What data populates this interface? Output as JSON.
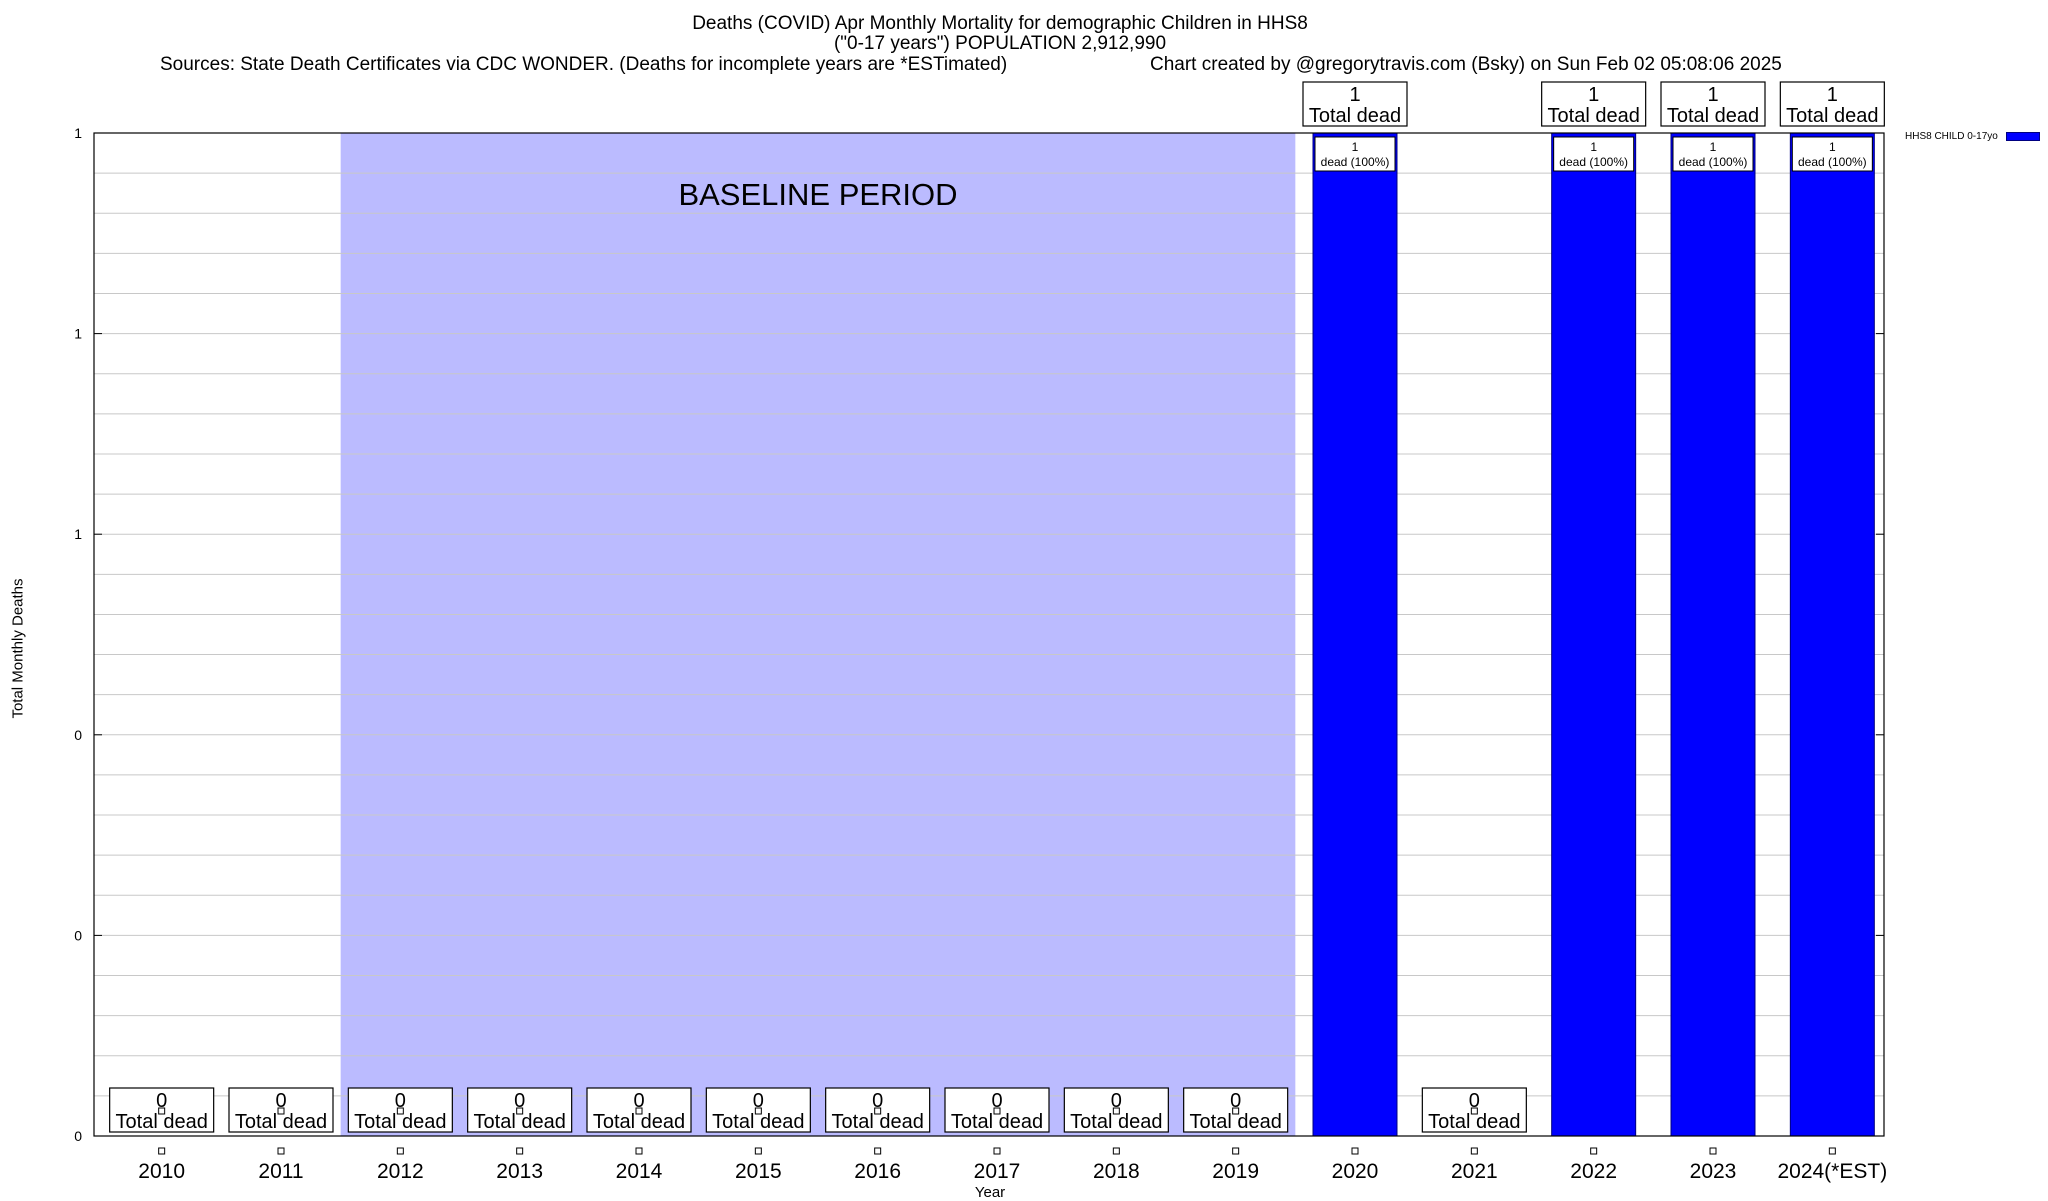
{
  "chart_data": {
    "type": "bar",
    "title": "Deaths (COVID) Apr Monthly Mortality for demographic Children in HHS8",
    "subtitle": "(\"0-17 years\") POPULATION 2,912,990",
    "sources_note": "Sources: State Death Certificates via CDC WONDER. (Deaths for incomplete years are *ESTimated)",
    "credit": "Chart created by @gregorytravis.com (Bsky) on Sun Feb 02 05:08:06 2025",
    "xlabel": "Year",
    "ylabel": "Total Monthly Deaths",
    "ylim": [
      0,
      1
    ],
    "ytick_labels": [
      "0",
      "0",
      "0",
      "1",
      "1",
      "1"
    ],
    "categories": [
      "2010",
      "2011",
      "2012",
      "2013",
      "2014",
      "2015",
      "2016",
      "2017",
      "2018",
      "2019",
      "2020",
      "2021",
      "2022",
      "2023",
      "2024(*EST)"
    ],
    "series": [
      {
        "name": "HHS8 CHILD 0-17yo",
        "values": [
          0,
          0,
          0,
          0,
          0,
          0,
          0,
          0,
          0,
          0,
          1,
          0,
          1,
          1,
          1
        ]
      }
    ],
    "total_label_suffix": "Total dead",
    "bar_label_suffix": "dead (100%)",
    "baseline": {
      "label": "BASELINE PERIOD",
      "start": "2012",
      "end": "2019"
    },
    "grid": true,
    "legend_position": "right",
    "colors": {
      "bar": "#0000ff",
      "baseline_fill": "#bbbbff"
    }
  }
}
